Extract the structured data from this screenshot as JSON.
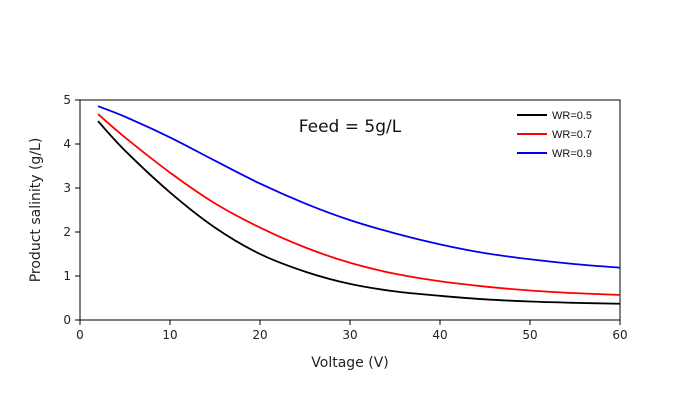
{
  "chart_data": {
    "type": "line",
    "title": "",
    "annotation": "Feed = 5g/L",
    "xlabel": "Voltage (V)",
    "ylabel": "Product salinity (g/L)",
    "xlim": [
      0,
      60
    ],
    "ylim": [
      0,
      5
    ],
    "xticks": [
      0,
      10,
      20,
      30,
      40,
      50,
      60
    ],
    "yticks": [
      0,
      1,
      2,
      3,
      4,
      5
    ],
    "grid": false,
    "legend_position": "top-right",
    "x": [
      2,
      5,
      10,
      15,
      20,
      25,
      30,
      35,
      40,
      45,
      50,
      55,
      60
    ],
    "series": [
      {
        "name": "WR=0.5",
        "color": "#000000",
        "values": [
          4.52,
          3.85,
          2.9,
          2.1,
          1.5,
          1.1,
          0.82,
          0.65,
          0.55,
          0.47,
          0.42,
          0.39,
          0.37
        ]
      },
      {
        "name": "WR=0.7",
        "color": "#ff0000",
        "values": [
          4.68,
          4.15,
          3.35,
          2.65,
          2.1,
          1.65,
          1.3,
          1.05,
          0.88,
          0.76,
          0.67,
          0.61,
          0.57
        ]
      },
      {
        "name": "WR=0.9",
        "color": "#0000ee",
        "values": [
          4.86,
          4.62,
          4.15,
          3.62,
          3.1,
          2.65,
          2.27,
          1.97,
          1.72,
          1.52,
          1.38,
          1.27,
          1.19
        ]
      }
    ]
  }
}
